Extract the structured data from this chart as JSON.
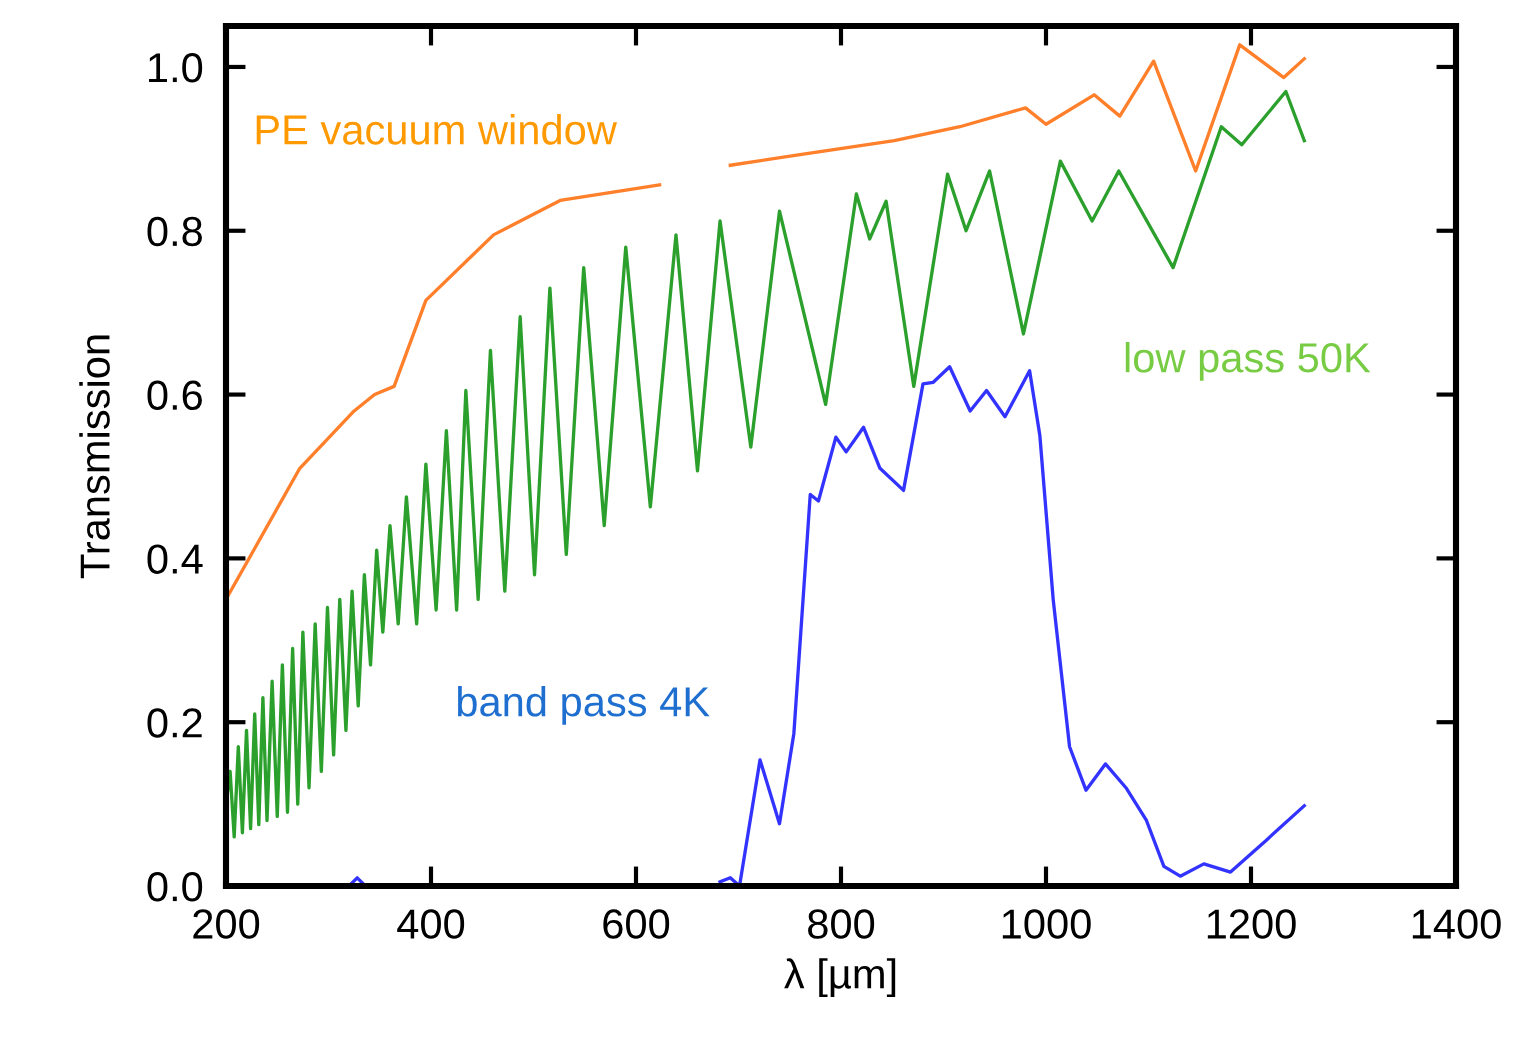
{
  "chart_data": {
    "type": "line",
    "xlabel": "λ [µm]",
    "ylabel": "Transmission",
    "xlim": [
      200,
      1400
    ],
    "ylim": [
      0,
      1.05
    ],
    "xticks": [
      200,
      400,
      600,
      800,
      1000,
      1200,
      1400
    ],
    "yticks": [
      {
        "value": 0,
        "label": "0.0"
      },
      {
        "value": 0.2,
        "label": "0.2"
      },
      {
        "value": 0.4,
        "label": "0.4"
      },
      {
        "value": 0.6,
        "label": "0.6"
      },
      {
        "value": 0.8,
        "label": "0.8"
      },
      {
        "value": 1.0,
        "label": "1.0"
      }
    ],
    "grid": false,
    "legend": false,
    "marker": "none",
    "line_style": "solid",
    "series": [
      {
        "name": "PE vacuum window",
        "color": "#ff7f2a",
        "x": [
          200,
          272,
          325,
          345,
          364,
          395,
          461,
          526,
          623,
          650,
          692,
          760,
          852,
          916,
          980,
          1000,
          1047,
          1072,
          1105,
          1146,
          1189,
          1232,
          1252
        ],
        "values": [
          0.35,
          0.51,
          0.58,
          0.6,
          0.61,
          0.715,
          0.795,
          0.837,
          0.856,
          null,
          0.88,
          0.893,
          0.91,
          0.927,
          0.95,
          0.93,
          0.966,
          0.94,
          1.007,
          0.873,
          1.027,
          0.987,
          1.01
        ]
      },
      {
        "name": "low pass 50K",
        "color": "#2ca02c",
        "x": [
          200,
          204,
          208,
          212,
          216,
          220,
          224,
          228,
          232,
          236,
          240,
          245,
          250,
          255,
          260,
          265,
          270,
          275,
          281,
          287,
          293,
          299,
          305,
          311,
          317,
          323,
          329,
          335,
          341,
          347,
          353,
          360,
          368,
          376,
          386,
          395,
          405,
          415,
          425,
          434,
          446,
          458,
          472,
          487,
          501,
          516,
          532,
          549,
          569,
          590,
          614,
          639,
          660,
          682,
          712,
          740,
          785,
          815,
          828,
          844,
          871,
          904,
          922,
          945,
          978,
          1014,
          1045,
          1071,
          1124,
          1171,
          1191,
          1234,
          1252
        ],
        "values": [
          0.1,
          0.14,
          0.06,
          0.17,
          0.065,
          0.19,
          0.07,
          0.21,
          0.075,
          0.23,
          0.08,
          0.25,
          0.085,
          0.27,
          0.09,
          0.29,
          0.1,
          0.31,
          0.12,
          0.32,
          0.14,
          0.34,
          0.16,
          0.35,
          0.19,
          0.36,
          0.22,
          0.38,
          0.27,
          0.41,
          0.31,
          0.44,
          0.32,
          0.475,
          0.32,
          0.515,
          0.337,
          0.556,
          0.337,
          0.605,
          0.35,
          0.654,
          0.36,
          0.695,
          0.38,
          0.73,
          0.405,
          0.755,
          0.44,
          0.78,
          0.463,
          0.795,
          0.507,
          0.812,
          0.536,
          0.824,
          0.588,
          0.845,
          0.79,
          0.836,
          0.61,
          0.869,
          0.8,
          0.873,
          0.674,
          0.885,
          0.812,
          0.873,
          0.755,
          0.927,
          0.905,
          0.97,
          0.91
        ]
      },
      {
        "name": "band pass 4K",
        "color": "#3333ff",
        "x": [
          320,
          328,
          336,
          500,
          682,
          692,
          701,
          721,
          740,
          754,
          770,
          778,
          795,
          805,
          822,
          838,
          861,
          880,
          890,
          906,
          926,
          942,
          960,
          984,
          994,
          1007,
          1023,
          1039,
          1058,
          1078,
          1098,
          1115,
          1131,
          1154,
          1180,
          1215,
          1252
        ],
        "values": [
          0.0,
          0.01,
          0.0,
          null,
          0.005,
          0.01,
          0.0,
          0.154,
          0.076,
          0.186,
          0.478,
          0.47,
          0.548,
          0.53,
          0.56,
          0.51,
          0.483,
          0.613,
          0.615,
          0.634,
          0.58,
          0.605,
          0.573,
          0.629,
          0.55,
          0.35,
          0.17,
          0.117,
          0.149,
          0.12,
          0.08,
          0.024,
          0.012,
          0.027,
          0.017,
          0.056,
          0.098
        ]
      }
    ]
  }
}
